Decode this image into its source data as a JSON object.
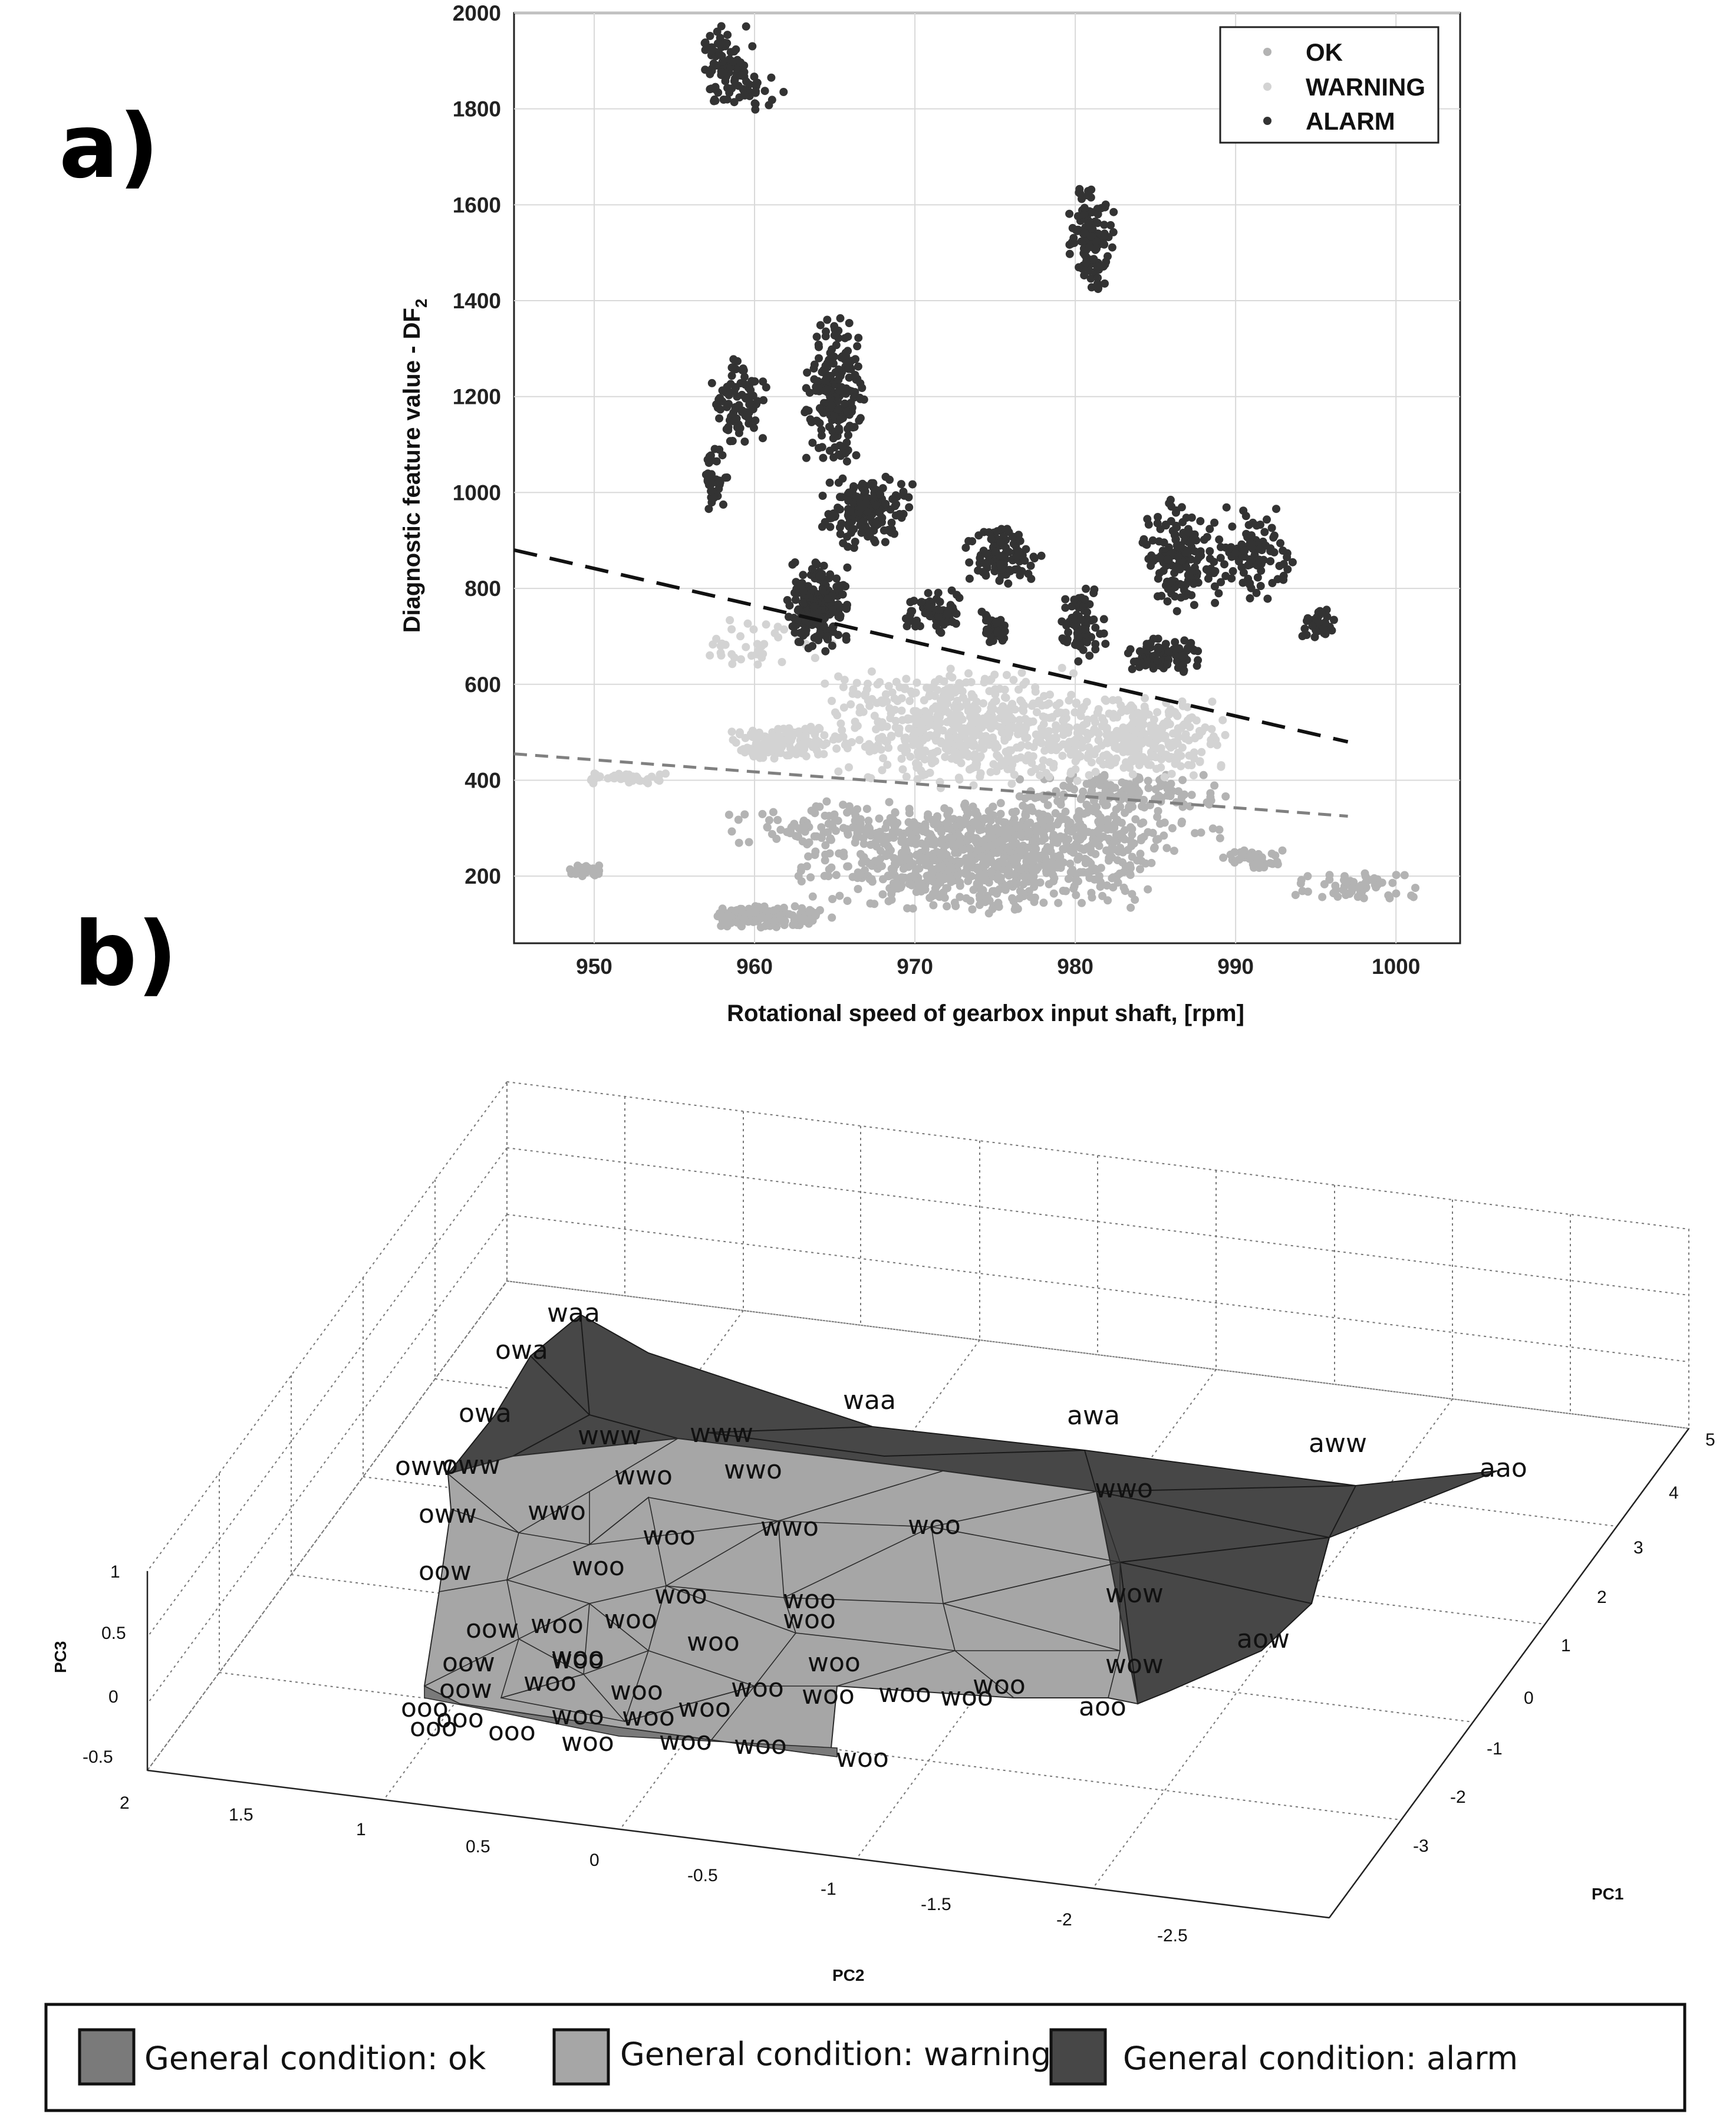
{
  "panel_a_letter": "a)",
  "panel_b_letter": "b)",
  "chart_data": [
    {
      "type": "scatter",
      "xlabel": "Rotational speed of gearbox input shaft, [rpm]",
      "ylabel_main": "Diagnostic feature value - DF",
      "ylabel_sub": "2",
      "xlim": [
        945,
        1004
      ],
      "ylim": [
        60,
        2000
      ],
      "xticks": [
        950,
        960,
        970,
        980,
        990,
        1000
      ],
      "yticks": [
        200,
        400,
        600,
        800,
        1000,
        1200,
        1400,
        1600,
        1800,
        2000
      ],
      "grid": true,
      "legend_position": "top-right",
      "series": [
        {
          "name": "OK",
          "color": "#b3b3b3",
          "clusters": [
            {
              "x": [
                948,
                951
              ],
              "y": [
                195,
                225
              ],
              "n": 30
            },
            {
              "x": [
                957,
                965
              ],
              "y": [
                90,
                140
              ],
              "n": 160
            },
            {
              "x": [
                962,
                986
              ],
              "y": [
                120,
                330
              ],
              "n": 700
            },
            {
              "x": [
                958,
                990
              ],
              "y": [
                240,
                360
              ],
              "n": 400
            },
            {
              "x": [
                976,
                990
              ],
              "y": [
                330,
                420
              ],
              "n": 150
            },
            {
              "x": [
                989,
                993
              ],
              "y": [
                210,
                260
              ],
              "n": 40
            },
            {
              "x": [
                993,
                1002
              ],
              "y": [
                150,
                210
              ],
              "n": 60
            }
          ]
        },
        {
          "name": "WARNING",
          "color": "#d3d3d3",
          "clusters": [
            {
              "x": [
                948,
                956
              ],
              "y": [
                390,
                420
              ],
              "n": 40
            },
            {
              "x": [
                958,
                966
              ],
              "y": [
                440,
                520
              ],
              "n": 140
            },
            {
              "x": [
                955,
                966
              ],
              "y": [
                620,
                740
              ],
              "n": 40
            },
            {
              "x": [
                964,
                982
              ],
              "y": [
                380,
                640
              ],
              "n": 600
            },
            {
              "x": [
                978,
                990
              ],
              "y": [
                400,
                580
              ],
              "n": 300
            }
          ]
        },
        {
          "name": "ALARM",
          "color": "#333333",
          "clusters": [
            {
              "x": [
                956.5,
                960
              ],
              "y": [
                1780,
                1990
              ],
              "n": 80
            },
            {
              "x": [
                958,
                962
              ],
              "y": [
                1790,
                1880
              ],
              "n": 25
            },
            {
              "x": [
                956.5,
                958.5
              ],
              "y": [
                960,
                1100
              ],
              "n": 40
            },
            {
              "x": [
                957,
                961
              ],
              "y": [
                1100,
                1300
              ],
              "n": 80
            },
            {
              "x": [
                963,
                967
              ],
              "y": [
                1050,
                1370
              ],
              "n": 200
            },
            {
              "x": [
                964,
                970
              ],
              "y": [
                880,
                1040
              ],
              "n": 180
            },
            {
              "x": [
                962,
                966
              ],
              "y": [
                660,
                860
              ],
              "n": 200
            },
            {
              "x": [
                969,
                973
              ],
              "y": [
                700,
                800
              ],
              "n": 60
            },
            {
              "x": [
                973,
                978
              ],
              "y": [
                800,
                940
              ],
              "n": 100
            },
            {
              "x": [
                974,
                976
              ],
              "y": [
                680,
                760
              ],
              "n": 40
            },
            {
              "x": [
                979.5,
                982.5
              ],
              "y": [
                1400,
                1660
              ],
              "n": 120
            },
            {
              "x": [
                979,
                982
              ],
              "y": [
                640,
                800
              ],
              "n": 80
            },
            {
              "x": [
                983,
                988
              ],
              "y": [
                620,
                700
              ],
              "n": 80
            },
            {
              "x": [
                984,
                989
              ],
              "y": [
                750,
                990
              ],
              "n": 150
            },
            {
              "x": [
                988,
                994
              ],
              "y": [
                750,
                990
              ],
              "n": 100
            },
            {
              "x": [
                994,
                996.5
              ],
              "y": [
                680,
                760
              ],
              "n": 40
            }
          ]
        }
      ],
      "threshold_lines": [
        {
          "style": "dashed",
          "color": "#111111",
          "x": [
            945,
            997
          ],
          "y": [
            880,
            480
          ]
        },
        {
          "style": "dashed",
          "color": "#808080",
          "x": [
            945,
            997
          ],
          "y": [
            455,
            325
          ]
        }
      ]
    },
    {
      "type": "3d-surface",
      "xlabel": "PC1",
      "ylabel": "PC2",
      "zlabel": "PC3",
      "pc1_ticks": [
        "5",
        "4",
        "3",
        "2",
        "1",
        "0",
        "-1",
        "-2",
        "-3"
      ],
      "pc2_ticks": [
        "2",
        "1.5",
        "1",
        "0.5",
        "0",
        "-0.5",
        "-1",
        "-1.5",
        "-2",
        "-2.5"
      ],
      "pc3_ticks": [
        "1",
        "0.5",
        "0",
        "-0.5"
      ],
      "point_labels": [
        "waa",
        "owa",
        "owa",
        "www",
        "www",
        "waa",
        "awa",
        "oww",
        "oww",
        "wwo",
        "wwo",
        "aww",
        "aao",
        "wwo",
        "oww",
        "wwo",
        "woo",
        "wwo",
        "woo",
        "oow",
        "woo",
        "woo",
        "woo",
        "wow",
        "oow",
        "woo",
        "woo",
        "woo",
        "aow",
        "woo",
        "woo",
        "oow",
        "woo",
        "woo",
        "wow",
        "oow",
        "woo",
        "woo",
        "woo",
        "woo",
        "woo",
        "woo",
        "woo",
        "aoo",
        "ooo",
        "ooo",
        "woo",
        "woo",
        "woo",
        "ooo",
        "ooo",
        "woo",
        "woo",
        "woo",
        "woo"
      ],
      "legend": [
        {
          "name": "General condition: ok",
          "color": "#7a7a7a"
        },
        {
          "name": "General condition: warning",
          "color": "#a6a6a6"
        },
        {
          "name": "General condition: alarm",
          "color": "#474747"
        }
      ]
    }
  ]
}
